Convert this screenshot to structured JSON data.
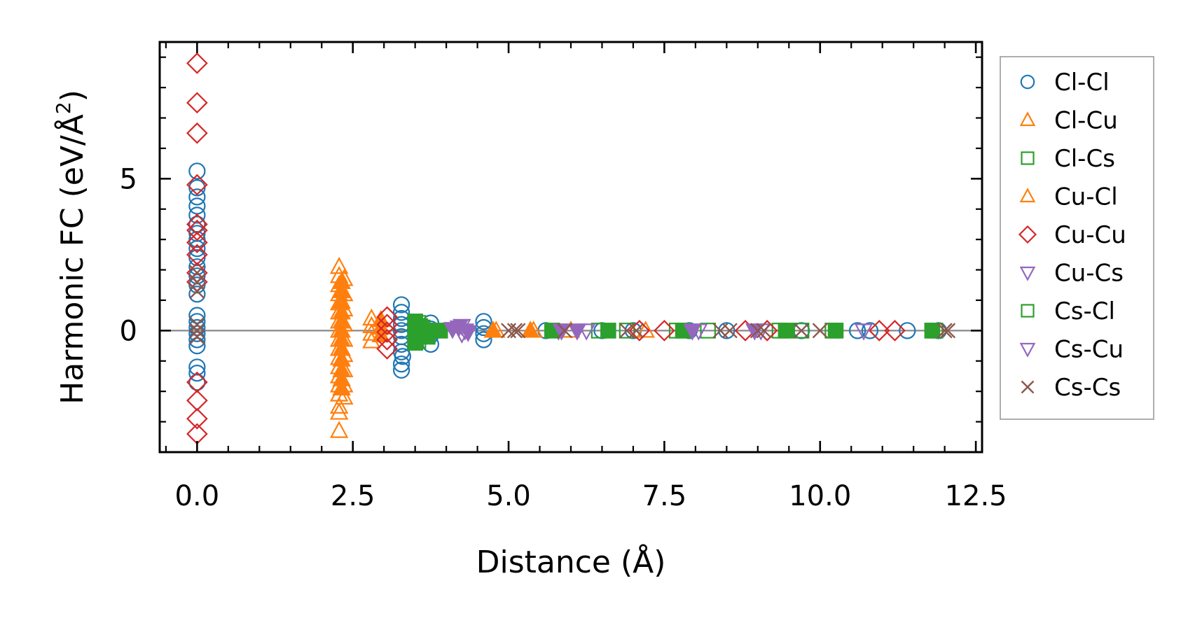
{
  "chart_data": {
    "type": "scatter",
    "title": "",
    "xlabel": "Distance (Å)",
    "ylabel": {
      "prefix": "Harmonic FC (eV/Å",
      "sup": "2",
      "suffix": ")"
    },
    "xlim": [
      -0.6,
      12.6
    ],
    "ylim": [
      -4.0,
      9.5
    ],
    "xticks": [
      0.0,
      2.5,
      5.0,
      7.5,
      10.0,
      12.5
    ],
    "xtick_labels": [
      "0.0",
      "2.5",
      "5.0",
      "7.5",
      "10.0",
      "12.5"
    ],
    "yticks": [
      0,
      5
    ],
    "ytick_labels": [
      "0",
      "5"
    ],
    "zero_line": true,
    "grid": false,
    "legend_position": "right-outside",
    "series": [
      {
        "name": "Cl-Cl",
        "marker": "circle",
        "color": "#1f77b4",
        "filled": false,
        "points": [
          [
            0,
            5.25
          ],
          [
            0,
            4.7
          ],
          [
            0,
            4.4
          ],
          [
            0,
            4.1
          ],
          [
            0,
            3.8
          ],
          [
            0,
            3.5
          ],
          [
            0,
            3.2
          ],
          [
            0,
            3.0
          ],
          [
            0,
            2.7
          ],
          [
            0,
            2.4
          ],
          [
            0,
            2.1
          ],
          [
            0,
            1.8
          ],
          [
            0,
            1.5
          ],
          [
            0,
            1.2
          ],
          [
            0,
            0.5
          ],
          [
            0,
            0.3
          ],
          [
            0,
            0.1
          ],
          [
            0,
            -0.1
          ],
          [
            0,
            -0.3
          ],
          [
            0,
            -0.5
          ],
          [
            0,
            -1.2
          ],
          [
            0,
            -1.4
          ],
          [
            0,
            -1.7
          ],
          [
            3.28,
            0.85
          ],
          [
            3.28,
            0.6
          ],
          [
            3.28,
            0.4
          ],
          [
            3.28,
            0.2
          ],
          [
            3.28,
            0
          ],
          [
            3.28,
            -0.2
          ],
          [
            3.28,
            -0.45
          ],
          [
            3.28,
            -0.7
          ],
          [
            3.28,
            -1.1
          ],
          [
            3.28,
            -1.3
          ],
          [
            3.3,
            -0.85
          ],
          [
            3.75,
            0.25
          ],
          [
            3.75,
            0.05
          ],
          [
            3.75,
            -0.15
          ],
          [
            3.75,
            -0.45
          ],
          [
            4.6,
            0.3
          ],
          [
            4.6,
            0.1
          ],
          [
            4.6,
            -0.1
          ],
          [
            4.6,
            -0.3
          ],
          [
            5.6,
            0
          ],
          [
            6.5,
            0
          ],
          [
            7.0,
            0
          ],
          [
            7.9,
            0
          ],
          [
            8.5,
            0
          ],
          [
            9.7,
            0
          ],
          [
            10.6,
            0
          ],
          [
            10.8,
            0
          ],
          [
            11.4,
            0
          ],
          [
            11.9,
            0
          ]
        ]
      },
      {
        "name": "Cl-Cu",
        "marker": "triangle-up",
        "color": "#ff7f0e",
        "filled": false,
        "points": [
          [
            2.28,
            2.1
          ],
          [
            2.28,
            1.8
          ],
          [
            2.28,
            1.5
          ],
          [
            2.28,
            1.2
          ],
          [
            2.28,
            0.9
          ],
          [
            2.28,
            0.6
          ],
          [
            2.28,
            0.3
          ],
          [
            2.28,
            0.0
          ],
          [
            2.28,
            -0.3
          ],
          [
            2.28,
            -0.6
          ],
          [
            2.28,
            -0.9
          ],
          [
            2.28,
            -1.2
          ],
          [
            2.28,
            -1.5
          ],
          [
            2.28,
            -1.8
          ],
          [
            2.28,
            -2.1
          ],
          [
            2.28,
            -2.5
          ],
          [
            2.28,
            -2.7
          ],
          [
            2.28,
            -3.3
          ],
          [
            2.36,
            1.7
          ],
          [
            2.36,
            1.2
          ],
          [
            2.36,
            0.7
          ],
          [
            2.36,
            0.2
          ],
          [
            2.36,
            -0.3
          ],
          [
            2.36,
            -0.8
          ],
          [
            2.36,
            -1.3
          ],
          [
            2.36,
            -1.8
          ],
          [
            2.36,
            -2.2
          ],
          [
            2.8,
            0.4
          ],
          [
            2.8,
            0.15
          ],
          [
            2.8,
            -0.1
          ],
          [
            2.8,
            -0.35
          ],
          [
            4.8,
            0
          ],
          [
            5.4,
            0
          ],
          [
            6.0,
            0
          ],
          [
            7.2,
            0
          ]
        ]
      },
      {
        "name": "Cl-Cs",
        "marker": "square",
        "color": "#2ca02c",
        "filled": false,
        "points": [
          [
            3.55,
            0.25
          ],
          [
            3.55,
            0.05
          ],
          [
            3.55,
            -0.15
          ],
          [
            3.55,
            -0.35
          ],
          [
            3.62,
            0.1
          ],
          [
            3.62,
            -0.1
          ],
          [
            6.45,
            0
          ],
          [
            6.9,
            0
          ],
          [
            7.7,
            0
          ],
          [
            8.2,
            0
          ],
          [
            9.35,
            0
          ],
          [
            9.7,
            0
          ],
          [
            10.2,
            0
          ],
          [
            11.85,
            0
          ]
        ]
      },
      {
        "name": "Cu-Cl",
        "marker": "triangle-up",
        "color": "#ff7f0e",
        "filled": true,
        "points": [
          [
            2.32,
            1.6
          ],
          [
            2.32,
            1.3
          ],
          [
            2.32,
            0.95
          ],
          [
            2.32,
            0.6
          ],
          [
            2.32,
            0.3
          ],
          [
            2.32,
            0.0
          ],
          [
            2.32,
            -0.3
          ],
          [
            2.32,
            -0.6
          ],
          [
            2.32,
            -0.95
          ],
          [
            2.32,
            -1.3
          ],
          [
            2.32,
            -1.6
          ],
          [
            2.32,
            -1.9
          ],
          [
            2.95,
            0.35
          ],
          [
            2.95,
            0.1
          ],
          [
            2.95,
            -0.15
          ],
          [
            4.75,
            0
          ],
          [
            5.35,
            0
          ]
        ]
      },
      {
        "name": "Cu-Cu",
        "marker": "diamond",
        "color": "#d62728",
        "filled": false,
        "points": [
          [
            0,
            8.8
          ],
          [
            0,
            7.5
          ],
          [
            0,
            6.5
          ],
          [
            0,
            4.8
          ],
          [
            0,
            3.5
          ],
          [
            0,
            3.3
          ],
          [
            0,
            2.9
          ],
          [
            0,
            2.5
          ],
          [
            0,
            1.9
          ],
          [
            0,
            1.6
          ],
          [
            0,
            -1.7
          ],
          [
            0,
            -2.3
          ],
          [
            0,
            -2.9
          ],
          [
            0,
            -3.4
          ],
          [
            3.05,
            0.45
          ],
          [
            3.05,
            0.2
          ],
          [
            3.05,
            -0.05
          ],
          [
            3.05,
            -0.3
          ],
          [
            3.05,
            -0.6
          ],
          [
            7.1,
            0
          ],
          [
            7.5,
            0
          ],
          [
            8.8,
            0
          ],
          [
            9.15,
            0
          ],
          [
            10.95,
            0
          ],
          [
            11.2,
            0
          ]
        ]
      },
      {
        "name": "Cu-Cs",
        "marker": "triangle-down",
        "color": "#9467bd",
        "filled": false,
        "points": [
          [
            4.25,
            0.15
          ],
          [
            4.25,
            -0.1
          ],
          [
            4.3,
            0.0
          ],
          [
            5.8,
            0
          ],
          [
            6.25,
            0
          ],
          [
            8.05,
            0
          ],
          [
            9.05,
            0
          ],
          [
            10.7,
            0
          ]
        ]
      },
      {
        "name": "Cs-Cl",
        "marker": "square",
        "color": "#2ca02c",
        "filled": true,
        "points": [
          [
            3.5,
            0.3
          ],
          [
            3.5,
            0.05
          ],
          [
            3.5,
            -0.2
          ],
          [
            3.5,
            -0.4
          ],
          [
            3.58,
            0.15
          ],
          [
            3.58,
            -0.1
          ],
          [
            3.65,
            0.0
          ],
          [
            3.7,
            -0.2
          ],
          [
            3.9,
            0.0
          ],
          [
            5.7,
            0
          ],
          [
            6.6,
            0
          ],
          [
            7.8,
            0
          ],
          [
            9.45,
            0
          ],
          [
            10.25,
            0
          ],
          [
            11.8,
            0
          ]
        ]
      },
      {
        "name": "Cs-Cu",
        "marker": "triangle-down",
        "color": "#9467bd",
        "filled": true,
        "points": [
          [
            4.2,
            0.1
          ],
          [
            4.35,
            -0.05
          ],
          [
            4.1,
            0.05
          ],
          [
            5.85,
            0
          ],
          [
            6.1,
            0
          ],
          [
            7.95,
            0
          ],
          [
            8.95,
            0
          ]
        ]
      },
      {
        "name": "Cs-Cs",
        "marker": "x",
        "color": "#8c564b",
        "filled": false,
        "points": [
          [
            0,
            1.9
          ],
          [
            0,
            1.6
          ],
          [
            0,
            1.3
          ],
          [
            0,
            0.2
          ],
          [
            0,
            0.0
          ],
          [
            0,
            -0.2
          ],
          [
            5.0,
            0
          ],
          [
            5.1,
            0
          ],
          [
            5.15,
            0
          ],
          [
            5.9,
            0
          ],
          [
            6.9,
            0
          ],
          [
            7.05,
            0
          ],
          [
            8.4,
            0
          ],
          [
            8.55,
            0
          ],
          [
            9.0,
            0
          ],
          [
            9.1,
            0
          ],
          [
            9.7,
            0
          ],
          [
            10.0,
            0
          ],
          [
            12.0,
            0
          ],
          [
            12.05,
            0
          ]
        ]
      }
    ]
  }
}
